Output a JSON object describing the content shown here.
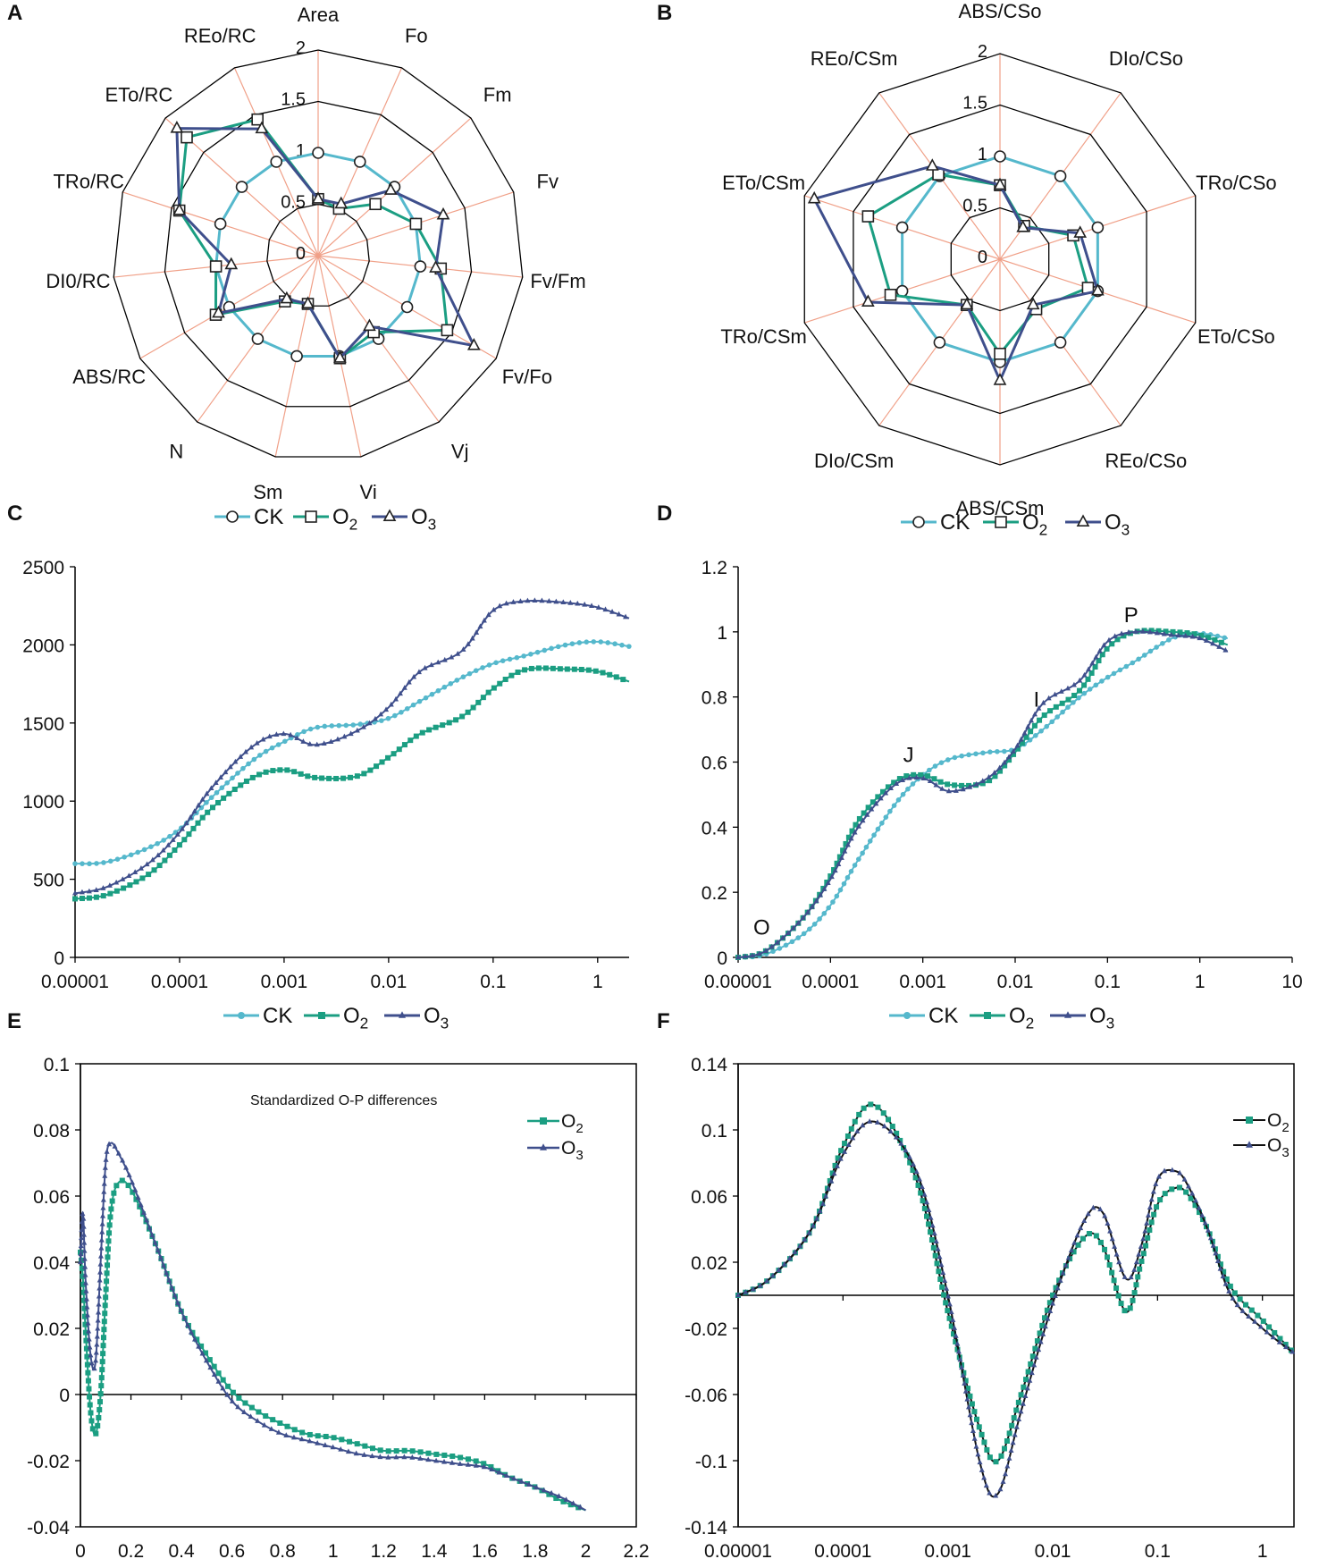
{
  "colors": {
    "CK": "#55b8cc",
    "O2": "#1b9e82",
    "O3": "#3f4f8c",
    "grid": "#f0a088",
    "frame": "#000000"
  },
  "chart_data": [
    {
      "panel": "A",
      "type": "radar",
      "axes": [
        "Area",
        "Fo",
        "Fm",
        "Fv",
        "Fv/Fm",
        "Fv/Fo",
        "Vj",
        "Vi",
        "Sm",
        "N",
        "ABS/RC",
        "DI0/RC",
        "TRo/RC",
        "ETo/RC",
        "REo/RC"
      ],
      "ticks": [
        "0",
        "0.5",
        "1",
        "1.5",
        "2"
      ],
      "range": [
        0,
        2
      ],
      "series": [
        {
          "name": "CK",
          "marker": "circle",
          "values": [
            1,
            1,
            1,
            1,
            1,
            1,
            1,
            1,
            1,
            1,
            1,
            1,
            1,
            1,
            1
          ]
        },
        {
          "name": "O2",
          "marker": "square",
          "values": [
            0.55,
            0.5,
            0.75,
            1.0,
            1.2,
            1.45,
            0.92,
            1.02,
            0.48,
            0.55,
            1.15,
            1.0,
            1.42,
            1.72,
            1.45
          ]
        },
        {
          "name": "O3",
          "marker": "triangle",
          "values": [
            0.55,
            0.55,
            0.95,
            1.28,
            1.15,
            1.75,
            0.85,
            1.02,
            0.48,
            0.52,
            1.12,
            0.85,
            1.42,
            1.85,
            1.35
          ]
        }
      ],
      "legend": [
        "CK",
        "O2",
        "O3"
      ]
    },
    {
      "panel": "B",
      "type": "radar",
      "axes": [
        "ABS/CSo",
        "DIo/CSo",
        "TRo/CSo",
        "ETo/CSo",
        "REo/CSo",
        "ABS/CSm",
        "DIo/CSm",
        "TRo/CSm",
        "ETo/CSm",
        "REo/CSm"
      ],
      "ticks": [
        "0",
        "0.5",
        "1",
        "1.5",
        "2"
      ],
      "range": [
        0,
        2
      ],
      "series": [
        {
          "name": "CK",
          "marker": "circle",
          "values": [
            1,
            1,
            1,
            1,
            1,
            1,
            1,
            1,
            1,
            1
          ]
        },
        {
          "name": "O2",
          "marker": "square",
          "values": [
            0.72,
            0.4,
            0.75,
            0.9,
            0.6,
            0.92,
            0.55,
            1.12,
            1.35,
            1.02
          ]
        },
        {
          "name": "O3",
          "marker": "triangle",
          "values": [
            0.72,
            0.38,
            0.82,
            1.0,
            0.55,
            1.18,
            0.55,
            1.35,
            1.9,
            1.12
          ]
        }
      ],
      "legend": [
        "CK",
        "O2",
        "O3"
      ]
    },
    {
      "panel": "C",
      "type": "line",
      "xscale": "log",
      "xlim": [
        1e-05,
        2
      ],
      "ylim": [
        0,
        2500
      ],
      "xticks": [
        "0.00001",
        "0.0001",
        "0.001",
        "0.01",
        "0.1",
        "1"
      ],
      "yticks": [
        "0",
        "500",
        "1000",
        "1500",
        "2000",
        "2500"
      ],
      "series": [
        {
          "name": "CK",
          "x": [
            1e-05,
            2e-05,
            5e-05,
            0.0001,
            0.0002,
            0.0005,
            0.001,
            0.002,
            0.005,
            0.01,
            0.02,
            0.05,
            0.1,
            0.2,
            0.5,
            1,
            2
          ],
          "y": [
            600,
            610,
            700,
            820,
            1020,
            1260,
            1380,
            1470,
            1490,
            1530,
            1640,
            1790,
            1880,
            1930,
            2000,
            2020,
            1990
          ]
        },
        {
          "name": "O2",
          "x": [
            1e-05,
            2e-05,
            5e-05,
            0.0001,
            0.0002,
            0.0005,
            0.001,
            0.002,
            0.005,
            0.01,
            0.02,
            0.05,
            0.1,
            0.2,
            0.5,
            1,
            2
          ],
          "y": [
            375,
            400,
            530,
            720,
            950,
            1150,
            1200,
            1150,
            1160,
            1280,
            1430,
            1540,
            1720,
            1840,
            1845,
            1830,
            1765
          ]
        },
        {
          "name": "O3",
          "x": [
            1e-05,
            2e-05,
            5e-05,
            0.0001,
            0.0002,
            0.0005,
            0.001,
            0.002,
            0.005,
            0.01,
            0.02,
            0.05,
            0.1,
            0.2,
            0.5,
            1,
            2
          ],
          "y": [
            410,
            450,
            600,
            800,
            1080,
            1350,
            1430,
            1360,
            1450,
            1600,
            1830,
            1960,
            2220,
            2280,
            2270,
            2240,
            2170
          ]
        }
      ],
      "legend": [
        "CK",
        "O2",
        "O3"
      ]
    },
    {
      "panel": "D",
      "type": "line",
      "xscale": "log",
      "xlim": [
        1e-05,
        10
      ],
      "ylim": [
        0,
        1.2
      ],
      "xticks": [
        "0.00001",
        "0.0001",
        "0.001",
        "0.01",
        "0.1",
        "1",
        "10"
      ],
      "yticks": [
        "0",
        "0.2",
        "0.4",
        "0.6",
        "0.8",
        "1",
        "1.2"
      ],
      "annotations": [
        {
          "text": "O",
          "x": 1.8e-05,
          "y": 0.07
        },
        {
          "text": "J",
          "x": 0.0007,
          "y": 0.6
        },
        {
          "text": "I",
          "x": 0.017,
          "y": 0.77
        },
        {
          "text": "P",
          "x": 0.18,
          "y": 1.03
        }
      ],
      "series": [
        {
          "name": "CK",
          "x": [
            1e-05,
            2e-05,
            5e-05,
            0.0001,
            0.0002,
            0.0005,
            0.001,
            0.002,
            0.005,
            0.01,
            0.02,
            0.05,
            0.1,
            0.2,
            0.5,
            1,
            2
          ],
          "y": [
            0,
            0.01,
            0.07,
            0.16,
            0.3,
            0.47,
            0.56,
            0.61,
            0.63,
            0.64,
            0.7,
            0.8,
            0.86,
            0.91,
            0.98,
            0.995,
            0.98
          ]
        },
        {
          "name": "O2",
          "x": [
            1e-05,
            2e-05,
            5e-05,
            0.0001,
            0.0002,
            0.0005,
            0.001,
            0.002,
            0.005,
            0.01,
            0.02,
            0.05,
            0.1,
            0.2,
            0.5,
            1,
            2
          ],
          "y": [
            0,
            0.02,
            0.12,
            0.25,
            0.42,
            0.54,
            0.56,
            0.53,
            0.54,
            0.63,
            0.74,
            0.82,
            0.95,
            1.0,
            1.0,
            0.99,
            0.96
          ]
        },
        {
          "name": "O3",
          "x": [
            1e-05,
            2e-05,
            5e-05,
            0.0001,
            0.0002,
            0.0005,
            0.001,
            0.002,
            0.005,
            0.01,
            0.02,
            0.05,
            0.1,
            0.2,
            0.5,
            1,
            2
          ],
          "y": [
            0,
            0.02,
            0.12,
            0.24,
            0.4,
            0.53,
            0.55,
            0.51,
            0.55,
            0.64,
            0.78,
            0.85,
            0.97,
            1.0,
            0.99,
            0.98,
            0.94
          ]
        }
      ],
      "legend": [
        "CK",
        "O2",
        "O3"
      ]
    },
    {
      "panel": "E",
      "type": "line",
      "xlim": [
        0,
        2.2
      ],
      "ylim": [
        -0.04,
        0.1
      ],
      "xticks": [
        "0",
        "0.2",
        "0.4",
        "0.6",
        "0.8",
        "1",
        "1.2",
        "1.4",
        "1.6",
        "1.8",
        "2",
        "2.2"
      ],
      "yticks": [
        "-0.04",
        "-0.02",
        "0",
        "0.02",
        "0.04",
        "0.06",
        "0.08",
        "0.1"
      ],
      "title": "Standardized O-P differences",
      "series": [
        {
          "name": "O2",
          "x": [
            0,
            0.01,
            0.02,
            0.04,
            0.06,
            0.08,
            0.1,
            0.12,
            0.15,
            0.2,
            0.3,
            0.4,
            0.5,
            0.6,
            0.7,
            0.8,
            0.9,
            1.0,
            1.1,
            1.2,
            1.3,
            1.4,
            1.5,
            1.6,
            1.7,
            1.8,
            1.9,
            2.0
          ],
          "y": [
            0.043,
            0.035,
            0.02,
            -0.005,
            -0.012,
            0.0,
            0.03,
            0.055,
            0.064,
            0.062,
            0.045,
            0.025,
            0.012,
            0.001,
            -0.005,
            -0.009,
            -0.012,
            -0.013,
            -0.015,
            -0.017,
            -0.017,
            -0.018,
            -0.019,
            -0.021,
            -0.025,
            -0.028,
            -0.032,
            -0.035
          ]
        },
        {
          "name": "O3",
          "x": [
            0,
            0.01,
            0.02,
            0.04,
            0.06,
            0.08,
            0.1,
            0.12,
            0.15,
            0.2,
            0.3,
            0.4,
            0.5,
            0.6,
            0.7,
            0.8,
            0.9,
            1.0,
            1.1,
            1.2,
            1.3,
            1.4,
            1.5,
            1.6,
            1.7,
            1.8,
            1.9,
            2.0
          ],
          "y": [
            0.04,
            0.055,
            0.035,
            0.012,
            0.01,
            0.04,
            0.07,
            0.076,
            0.073,
            0.065,
            0.045,
            0.025,
            0.01,
            -0.002,
            -0.008,
            -0.012,
            -0.014,
            -0.016,
            -0.018,
            -0.019,
            -0.019,
            -0.02,
            -0.021,
            -0.022,
            -0.025,
            -0.028,
            -0.031,
            -0.035
          ]
        }
      ],
      "legend": [
        "O2",
        "O3"
      ]
    },
    {
      "panel": "F",
      "type": "line",
      "xscale": "log",
      "xlim": [
        1e-05,
        2
      ],
      "ylim": [
        -0.14,
        0.14
      ],
      "xticks": [
        "0.00001",
        "0.0001",
        "0.001",
        "0.01",
        "0.1",
        "1"
      ],
      "yticks": [
        "-0.14",
        "-0.1",
        "-0.06",
        "-0.02",
        "0.02",
        "0.06",
        "0.1",
        "0.14"
      ],
      "series": [
        {
          "name": "O2",
          "x": [
            1e-05,
            2e-05,
            5e-05,
            0.0001,
            0.0002,
            0.0005,
            0.001,
            0.002,
            0.003,
            0.005,
            0.01,
            0.02,
            0.03,
            0.05,
            0.07,
            0.1,
            0.15,
            0.2,
            0.3,
            0.5,
            1,
            2
          ],
          "y": [
            0,
            0.01,
            0.04,
            0.09,
            0.115,
            0.07,
            -0.01,
            -0.08,
            -0.1,
            -0.06,
            0.0,
            0.035,
            0.03,
            -0.01,
            0.02,
            0.055,
            0.065,
            0.06,
            0.04,
            0.005,
            -0.015,
            -0.035
          ]
        },
        {
          "name": "O3",
          "x": [
            1e-05,
            2e-05,
            5e-05,
            0.0001,
            0.0002,
            0.0005,
            0.001,
            0.002,
            0.003,
            0.005,
            0.01,
            0.02,
            0.03,
            0.05,
            0.07,
            0.1,
            0.15,
            0.2,
            0.3,
            0.5,
            1,
            2
          ],
          "y": [
            0,
            0.01,
            0.04,
            0.085,
            0.105,
            0.075,
            0.0,
            -0.1,
            -0.12,
            -0.07,
            -0.005,
            0.045,
            0.05,
            0.01,
            0.03,
            0.07,
            0.075,
            0.065,
            0.04,
            0.0,
            -0.02,
            -0.035
          ]
        }
      ],
      "legend": [
        "O2",
        "O3"
      ]
    }
  ]
}
